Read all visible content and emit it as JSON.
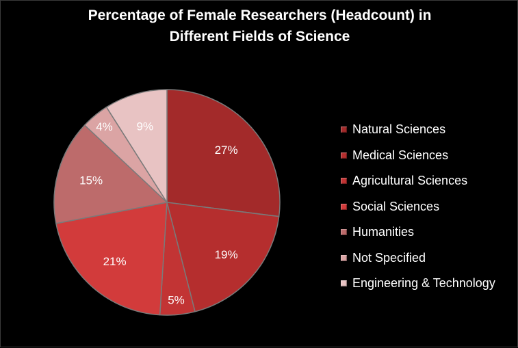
{
  "chart_data": {
    "type": "pie",
    "title_lines": [
      "Percentage of Female Researchers (Headcount) in",
      "Different Fields of Science"
    ],
    "slices": [
      {
        "label": "Natural Sciences",
        "value": 27,
        "display": "27%",
        "color": "#a32a2a"
      },
      {
        "label": "Medical Sciences",
        "value": 19,
        "display": "19%",
        "color": "#b52e2e"
      },
      {
        "label": "Agricultural Sciences",
        "value": 5,
        "display": "5%",
        "color": "#c23434"
      },
      {
        "label": "Social Sciences",
        "value": 21,
        "display": "21%",
        "color": "#d23b3b"
      },
      {
        "label": "Humanities",
        "value": 15,
        "display": "15%",
        "color": "#bd6b6b"
      },
      {
        "label": "Not Specified",
        "value": 4,
        "display": "4%",
        "color": "#dba4a4"
      },
      {
        "label": "Engineering & Technology",
        "value": 9,
        "display": "9%",
        "color": "#e8c3c3"
      }
    ],
    "legend_position": "right"
  }
}
